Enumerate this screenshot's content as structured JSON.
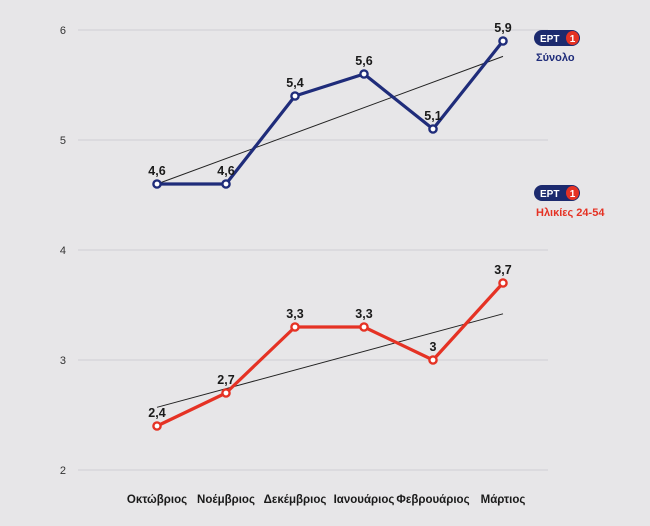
{
  "chart_data": {
    "type": "line",
    "categories": [
      "Οκτώβριος",
      "Νοέμβριος",
      "Δεκέμβριος",
      "Ιανουάριος",
      "Φεβρουάριος",
      "Μάρτιος"
    ],
    "ylim": [
      2,
      6
    ],
    "yticks": [
      "2",
      "3",
      "4",
      "5",
      "6"
    ],
    "series": [
      {
        "name": "Σύνολο",
        "color": "#1f2c7a",
        "values": [
          4.6,
          4.6,
          5.4,
          5.6,
          5.1,
          5.9
        ],
        "labels": [
          "4,6",
          "4,6",
          "5,4",
          "5,6",
          "5,1",
          "5,9"
        ],
        "trendline": [
          4.6,
          5.76
        ]
      },
      {
        "name": "Ηλικίες 24-54",
        "color": "#e53224",
        "values": [
          2.4,
          2.7,
          3.3,
          3.3,
          3.0,
          3.7
        ],
        "labels": [
          "2,4",
          "2,7",
          "3,3",
          "3,3",
          "3",
          "3,7"
        ],
        "trendline": [
          2.57,
          3.42
        ]
      }
    ],
    "legend": [
      {
        "badge_text": "ΕΡΤ",
        "badge_number": "1",
        "label": "Σύνολο",
        "color": "#1f2c7a"
      },
      {
        "badge_text": "ΕΡΤ",
        "badge_number": "1",
        "label": "Ηλικίες 24-54",
        "color": "#e53224"
      }
    ],
    "colors": {
      "badge_navy": "#1c2a6e",
      "badge_red": "#e53224",
      "grid": "#cfcfd3",
      "trend": "#222222"
    }
  }
}
